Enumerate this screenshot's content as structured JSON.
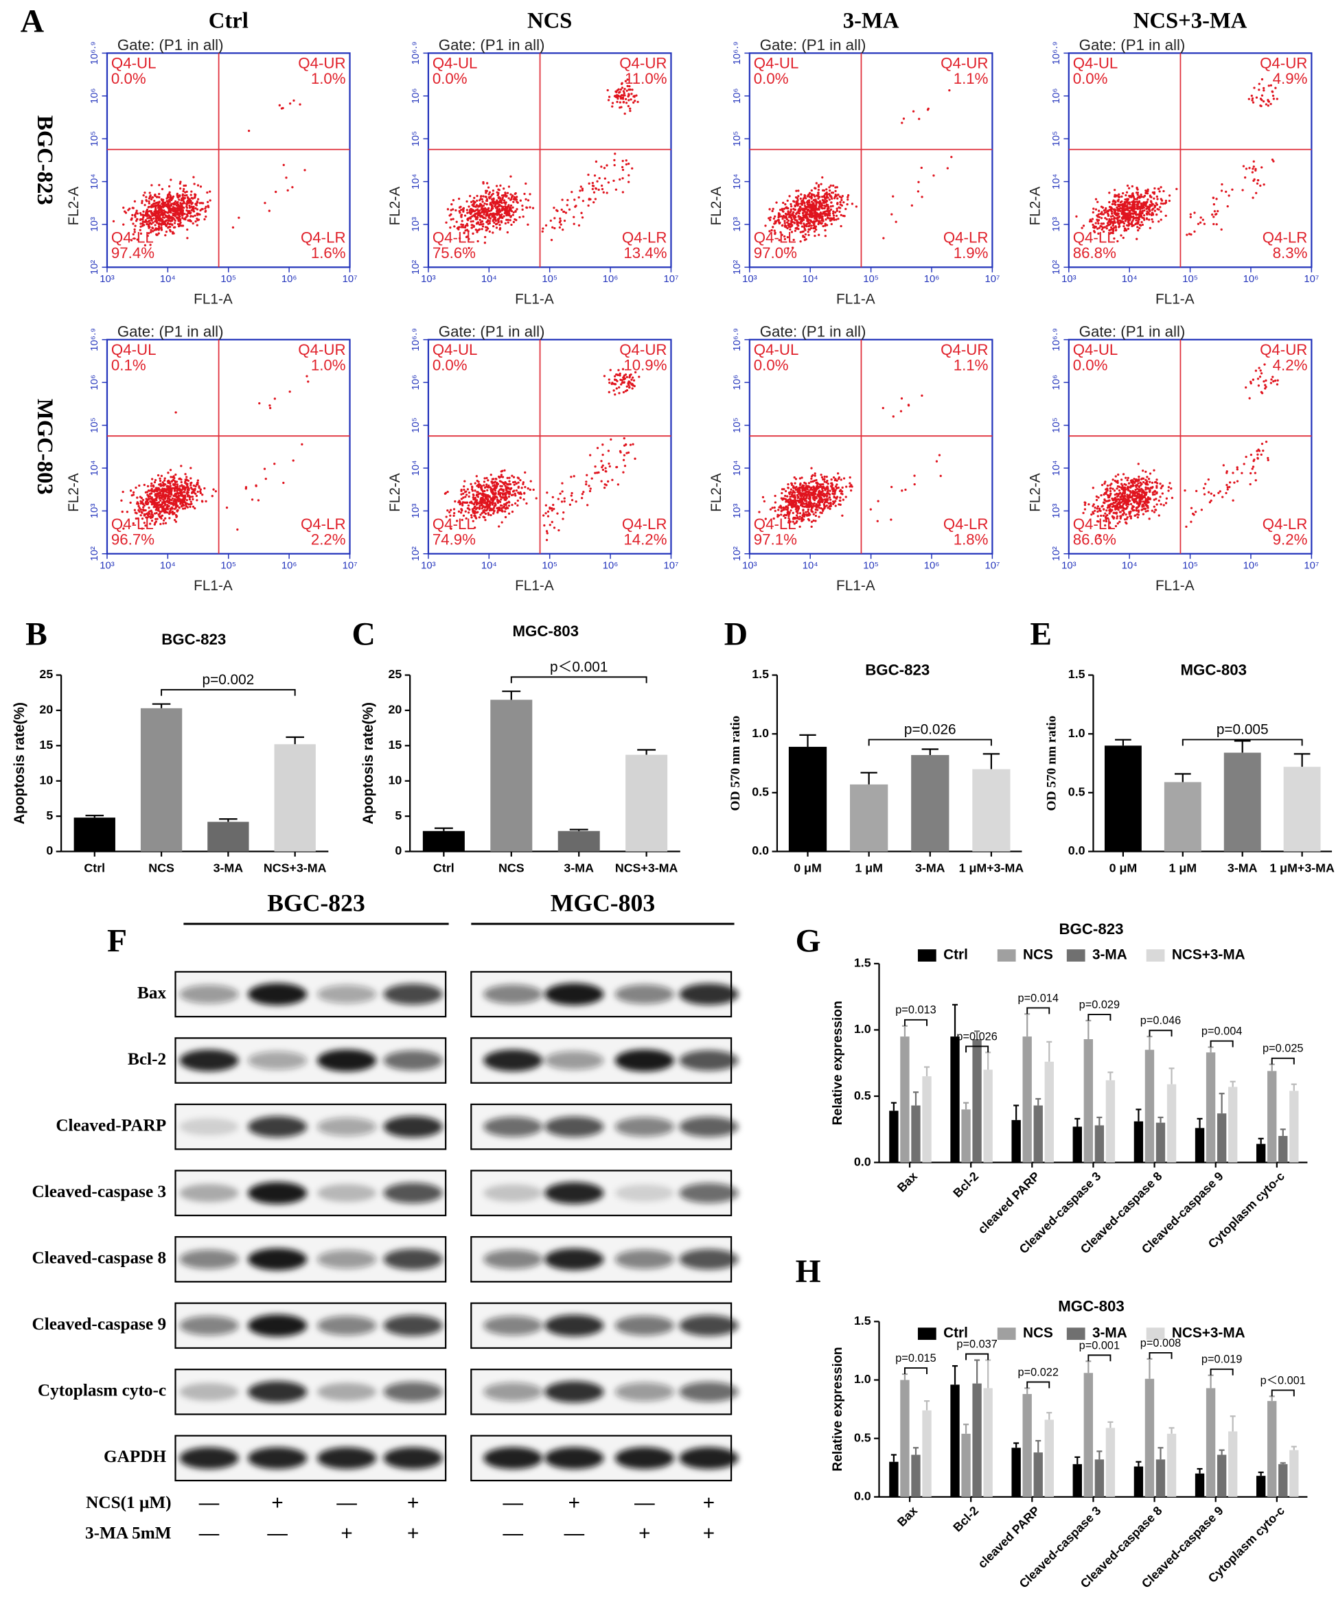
{
  "flow_cytometry": {
    "label": "A",
    "columns": [
      "Ctrl",
      "NCS",
      "3-MA",
      "NCS+3-MA"
    ],
    "rows": [
      "BGC-823",
      "MGC-803"
    ],
    "gate": "Gate: (P1 in all)",
    "x_label": "FL1-A",
    "y_label": "FL2-A",
    "xticks": [
      "10³",
      "10⁴",
      "10⁵",
      "10⁶",
      "10⁷"
    ],
    "yticks": [
      "10²",
      "10³",
      "10⁴",
      "10⁵",
      "10⁶",
      "10⁶·⁹"
    ],
    "quadrants": [
      "Q4-UL",
      "Q4-UR",
      "Q4-LL",
      "Q4-LR"
    ],
    "plots": [
      [
        [
          "0.0%",
          "1.0%",
          "97.4%",
          "1.6%"
        ],
        [
          "0.0%",
          "11.0%",
          "75.6%",
          "13.4%"
        ],
        [
          "0.0%",
          "1.1%",
          "97.0%",
          "1.9%"
        ],
        [
          "0.0%",
          "4.9%",
          "86.8%",
          "8.3%"
        ]
      ],
      [
        [
          "0.1%",
          "1.0%",
          "96.7%",
          "2.2%"
        ],
        [
          "0.0%",
          "10.9%",
          "74.9%",
          "14.2%"
        ],
        [
          "0.0%",
          "1.1%",
          "97.1%",
          "1.8%"
        ],
        [
          "0.0%",
          "4.2%",
          "86.6%",
          "9.2%"
        ]
      ]
    ]
  },
  "western_blot": {
    "label": "F",
    "groups": [
      "BGC-823",
      "MGC-803"
    ],
    "proteins": [
      "Bax",
      "Bcl-2",
      "Cleaved-PARP",
      "Cleaved-caspase 3",
      "Cleaved-caspase 8",
      "Cleaved-caspase 9",
      "Cytoplasm cyto-c",
      "GAPDH"
    ],
    "treatments": [
      {
        "name": "NCS(1 μM)",
        "signs": [
          "—",
          "+",
          "—",
          "+",
          "—",
          "+",
          "—",
          "+"
        ]
      },
      {
        "name": "3-MA  5mM",
        "signs": [
          "—",
          "—",
          "+",
          "+",
          "—",
          "—",
          "+",
          "+"
        ]
      }
    ]
  },
  "chart_data": [
    {
      "type": "bar",
      "label": "B",
      "title": "BGC-823",
      "y_label": "Apoptosis rate(%)",
      "categories": [
        "Ctrl",
        "NCS",
        "3-MA",
        "NCS+3-MA"
      ],
      "values": [
        4.8,
        20.3,
        4.2,
        15.2
      ],
      "errors": [
        0.3,
        0.6,
        0.4,
        1.0
      ],
      "colors": [
        "#000000",
        "#8f8f8f",
        "#6a6a6a",
        "#d4d4d4"
      ],
      "annotations": [
        "p=0.002"
      ],
      "ylim": [
        0,
        25
      ],
      "yticks": [
        0,
        5,
        10,
        15,
        20,
        25
      ]
    },
    {
      "type": "bar",
      "label": "C",
      "title": "MGC-803",
      "y_label": "Apoptosis rate(%)",
      "categories": [
        "Ctrl",
        "NCS",
        "3-MA",
        "NCS+3-MA"
      ],
      "values": [
        2.9,
        21.5,
        2.9,
        13.7
      ],
      "errors": [
        0.4,
        1.2,
        0.2,
        0.7
      ],
      "colors": [
        "#000000",
        "#8f8f8f",
        "#6a6a6a",
        "#d4d4d4"
      ],
      "annotations": [
        "p＜0.001"
      ],
      "ylim": [
        0,
        25
      ],
      "yticks": [
        0,
        5,
        10,
        15,
        20,
        25
      ]
    },
    {
      "type": "bar",
      "label": "D",
      "title": "BGC-823",
      "y_label": "OD 570 nm ratio",
      "categories": [
        "0 μM",
        "1 μM",
        "3-MA",
        "1 μM+3-MA"
      ],
      "values": [
        0.89,
        0.57,
        0.82,
        0.7
      ],
      "errors": [
        0.1,
        0.1,
        0.05,
        0.13
      ],
      "colors": [
        "#000000",
        "#a6a6a6",
        "#808080",
        "#d9d9d9"
      ],
      "annotations": [
        "p=0.026"
      ],
      "ylim": [
        0,
        1.5
      ],
      "yticks": [
        {
          "value": 0,
          "label": "0.0"
        },
        {
          "value": 0.5,
          "label": "0.5"
        },
        {
          "value": 1,
          "label": "1.0"
        },
        {
          "value": 1.5,
          "label": "1.5"
        }
      ]
    },
    {
      "type": "bar",
      "label": "E",
      "title": "MGC-803",
      "y_label": "OD 570 nm ratio",
      "categories": [
        "0 μM",
        "1 μM",
        "3-MA",
        "1 μM+3-MA"
      ],
      "values": [
        0.9,
        0.59,
        0.84,
        0.72
      ],
      "errors": [
        0.05,
        0.07,
        0.1,
        0.11
      ],
      "colors": [
        "#000000",
        "#a6a6a6",
        "#808080",
        "#d9d9d9"
      ],
      "annotations": [
        "p=0.005"
      ],
      "ylim": [
        0,
        1.5
      ],
      "yticks": [
        {
          "value": 0,
          "label": "0.0"
        },
        {
          "value": 0.5,
          "label": "0.5"
        },
        {
          "value": 1,
          "label": "1.0"
        },
        {
          "value": 1.5,
          "label": "1.5"
        }
      ]
    },
    {
      "type": "grouped_bar",
      "label": "G",
      "title": "BGC-823",
      "y_label": "Relative expression",
      "categories": [
        "Bax",
        "Bcl-2",
        "cleaved PARP",
        "Cleaved-caspase 3",
        "Cleaved-caspase 8",
        "Cleaved-caspase 9",
        "Cytoplasm cyto-c"
      ],
      "series": [
        {
          "name": "Ctrl",
          "color": "#000000",
          "values": [
            0.39,
            0.95,
            0.32,
            0.27,
            0.31,
            0.26,
            0.14
          ],
          "errors": [
            0.06,
            0.24,
            0.11,
            0.06,
            0.09,
            0.07,
            0.04
          ]
        },
        {
          "name": "NCS",
          "color": "#a0a0a0",
          "values": [
            0.95,
            0.4,
            0.95,
            0.93,
            0.85,
            0.83,
            0.69
          ],
          "errors": [
            0.08,
            0.05,
            0.17,
            0.14,
            0.1,
            0.04,
            0.05
          ]
        },
        {
          "name": "3-MA",
          "color": "#707070",
          "values": [
            0.43,
            0.93,
            0.43,
            0.28,
            0.3,
            0.37,
            0.2
          ],
          "errors": [
            0.1,
            0.06,
            0.05,
            0.06,
            0.04,
            0.15,
            0.05
          ]
        },
        {
          "name": "NCS+3-MA",
          "color": "#d9d9d9",
          "values": [
            0.65,
            0.7,
            0.76,
            0.62,
            0.59,
            0.57,
            0.54
          ],
          "errors": [
            0.07,
            0.13,
            0.15,
            0.06,
            0.12,
            0.04,
            0.05
          ]
        }
      ],
      "annotations": [
        "p=0.013",
        "p=0.026",
        "p=0.014",
        "p=0.029",
        "p=0.046",
        "p=0.004",
        "p=0.025"
      ],
      "ylim": [
        0,
        1.5
      ],
      "yticks": [
        {
          "value": 0,
          "label": "0.0"
        },
        {
          "value": 0.5,
          "label": "0.5"
        },
        {
          "value": 1,
          "label": "1.0"
        },
        {
          "value": 1.5,
          "label": "1.5"
        }
      ]
    },
    {
      "type": "grouped_bar",
      "label": "H",
      "title": "MGC-803",
      "y_label": "Relative expression",
      "categories": [
        "Bax",
        "Bcl-2",
        "cleaved PARP",
        "Cleaved-caspase 3",
        "Cleaved-caspase 8",
        "Cleaved-caspase 9",
        "Cytoplasm cyto-c"
      ],
      "series": [
        {
          "name": "Ctrl",
          "color": "#000000",
          "values": [
            0.3,
            0.96,
            0.42,
            0.28,
            0.26,
            0.2,
            0.18
          ],
          "errors": [
            0.06,
            0.16,
            0.04,
            0.06,
            0.04,
            0.04,
            0.03
          ]
        },
        {
          "name": "NCS",
          "color": "#a0a0a0",
          "values": [
            1.0,
            0.54,
            0.88,
            1.06,
            1.01,
            0.93,
            0.82
          ],
          "errors": [
            0.05,
            0.08,
            0.05,
            0.1,
            0.17,
            0.11,
            0.04
          ]
        },
        {
          "name": "3-MA",
          "color": "#707070",
          "values": [
            0.36,
            0.97,
            0.38,
            0.32,
            0.32,
            0.36,
            0.28
          ],
          "errors": [
            0.06,
            0.2,
            0.1,
            0.07,
            0.1,
            0.04,
            0.01
          ]
        },
        {
          "name": "NCS+3-MA",
          "color": "#d9d9d9",
          "values": [
            0.74,
            0.93,
            0.66,
            0.59,
            0.54,
            0.56,
            0.4
          ],
          "errors": [
            0.08,
            0.24,
            0.06,
            0.05,
            0.05,
            0.13,
            0.03
          ]
        }
      ],
      "annotations": [
        "p=0.015",
        "p=0.037",
        "p=0.022",
        "p=0.001",
        "p=0.008",
        "p=0.019",
        "p＜0.001"
      ],
      "ylim": [
        0,
        1.5
      ],
      "yticks": [
        {
          "value": 0,
          "label": "0.0"
        },
        {
          "value": 0.5,
          "label": "0.5"
        },
        {
          "value": 1,
          "label": "1.0"
        },
        {
          "value": 1.5,
          "label": "1.5"
        }
      ]
    }
  ]
}
